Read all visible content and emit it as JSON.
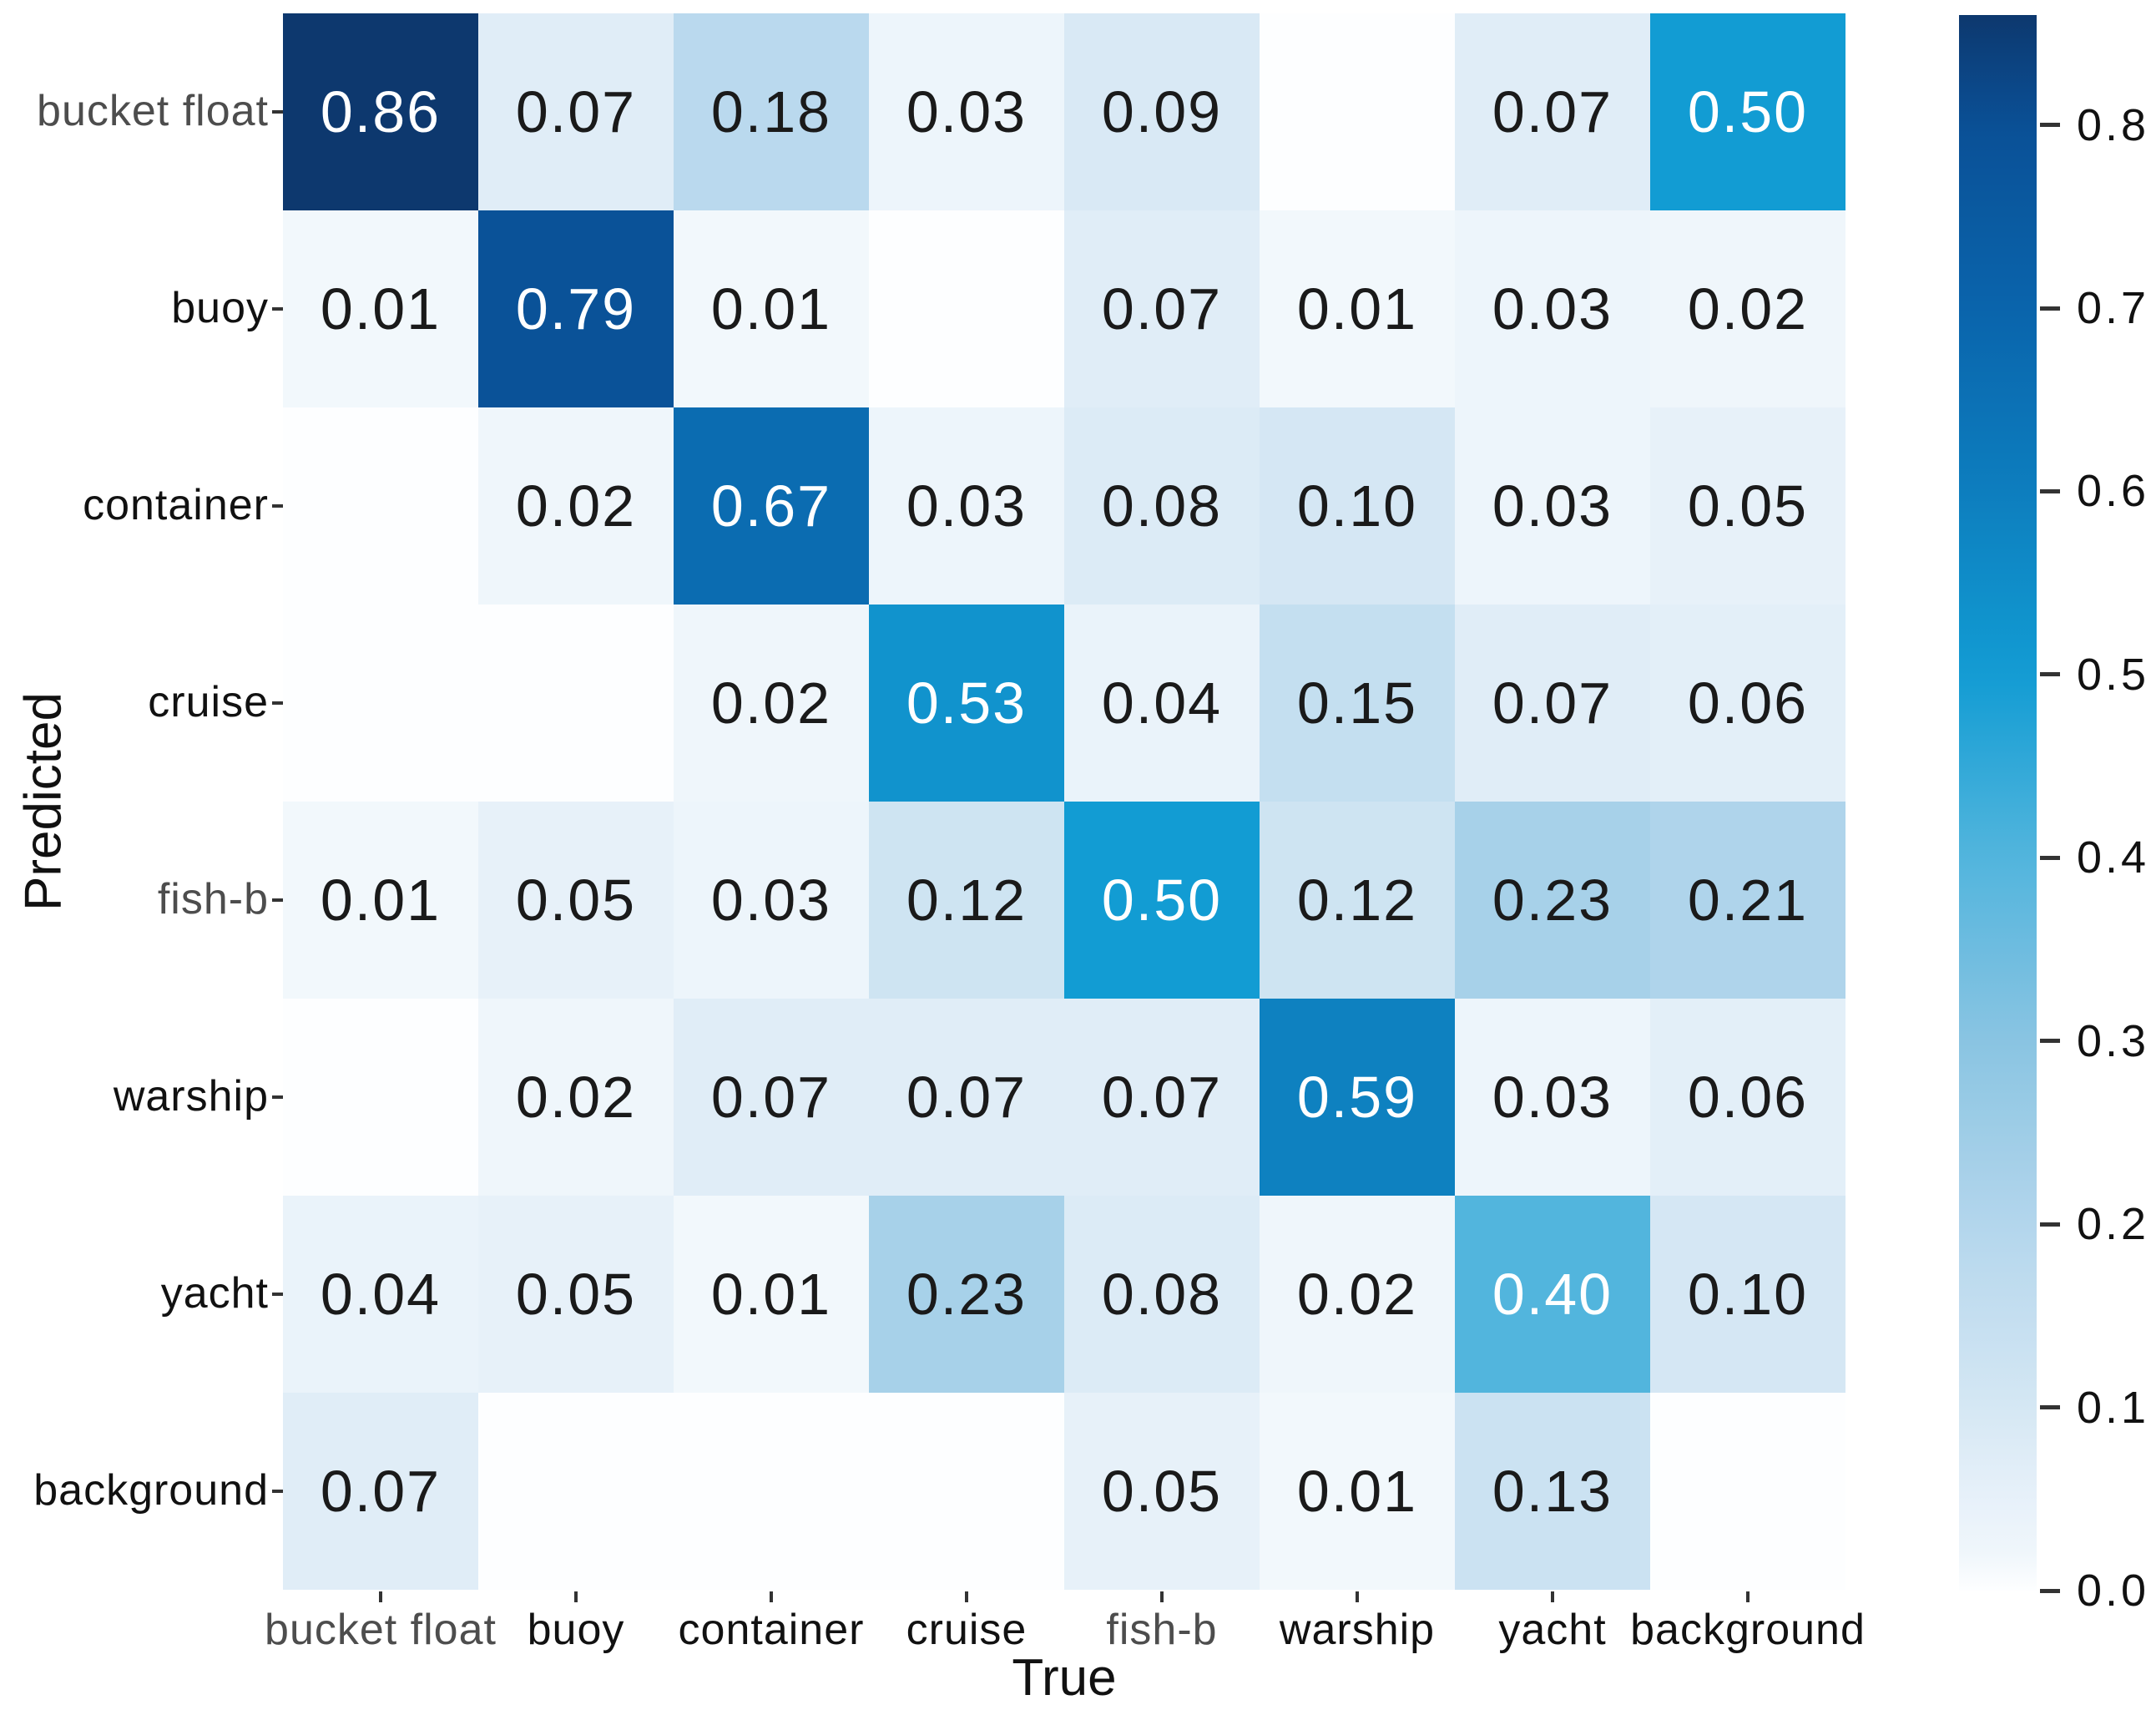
{
  "figure": {
    "background": "#ffffff"
  },
  "chart_data": {
    "type": "heatmap",
    "title": "",
    "xlabel": "True",
    "ylabel": "Predicted",
    "x_categories": [
      "bucket float",
      "buoy",
      "container",
      "cruise",
      "fish-b",
      "warship",
      "yacht",
      "background"
    ],
    "y_categories": [
      "bucket float",
      "buoy",
      "container",
      "cruise",
      "fish-b",
      "warship",
      "yacht",
      "background"
    ],
    "matrix": [
      [
        0.86,
        0.07,
        0.18,
        0.03,
        0.09,
        null,
        0.07,
        0.5
      ],
      [
        0.01,
        0.79,
        0.01,
        null,
        0.07,
        0.01,
        0.03,
        0.02
      ],
      [
        null,
        0.02,
        0.67,
        0.03,
        0.08,
        0.1,
        0.03,
        0.05
      ],
      [
        null,
        null,
        0.02,
        0.53,
        0.04,
        0.15,
        0.07,
        0.06
      ],
      [
        0.01,
        0.05,
        0.03,
        0.12,
        0.5,
        0.12,
        0.23,
        0.21
      ],
      [
        null,
        0.02,
        0.07,
        0.07,
        0.07,
        0.59,
        0.03,
        0.06
      ],
      [
        0.04,
        0.05,
        0.01,
        0.23,
        0.08,
        0.02,
        0.4,
        0.1
      ],
      [
        0.07,
        null,
        null,
        null,
        0.05,
        0.01,
        0.13,
        null
      ]
    ],
    "cell_value_decimals": 2,
    "colorbar_ticks": [
      {
        "label": "0.8",
        "value": 0.8
      },
      {
        "label": "0.7",
        "value": 0.7
      },
      {
        "label": "0.6",
        "value": 0.6
      },
      {
        "label": "0.5",
        "value": 0.5
      },
      {
        "label": "0.4",
        "value": 0.4
      },
      {
        "label": "0.3",
        "value": 0.3
      },
      {
        "label": "0.2",
        "value": 0.2
      },
      {
        "label": "0.1",
        "value": 0.1
      },
      {
        "label": "0.0",
        "value": 0.0
      }
    ],
    "colorbar_vmax": 0.86,
    "colormap_stops": [
      [
        0.0,
        "#fdfeff"
      ],
      [
        0.01,
        "#f2f8fc"
      ],
      [
        0.05,
        "#e7f1f9"
      ],
      [
        0.1,
        "#d5e7f4"
      ],
      [
        0.2,
        "#b3d6ec"
      ],
      [
        0.3,
        "#8ac4e2"
      ],
      [
        0.4,
        "#52b5dd"
      ],
      [
        0.5,
        "#129cd3"
      ],
      [
        0.6,
        "#0d7ebe"
      ],
      [
        0.7,
        "#0a64ac"
      ],
      [
        0.8,
        "#0a5096"
      ],
      [
        0.9,
        "#0f2854"
      ]
    ],
    "light_text_threshold": 0.38,
    "text_color_light": "#ffffff",
    "text_color_dark": "#1a1a1a",
    "tick_color": "#111111",
    "muted_tick_color": "#4d4d4d",
    "muted_tick_labels": [
      "bucket float",
      "fish-b"
    ],
    "grid": false,
    "legend_position": "colorbar-right",
    "xlim": null,
    "ylim": null
  }
}
